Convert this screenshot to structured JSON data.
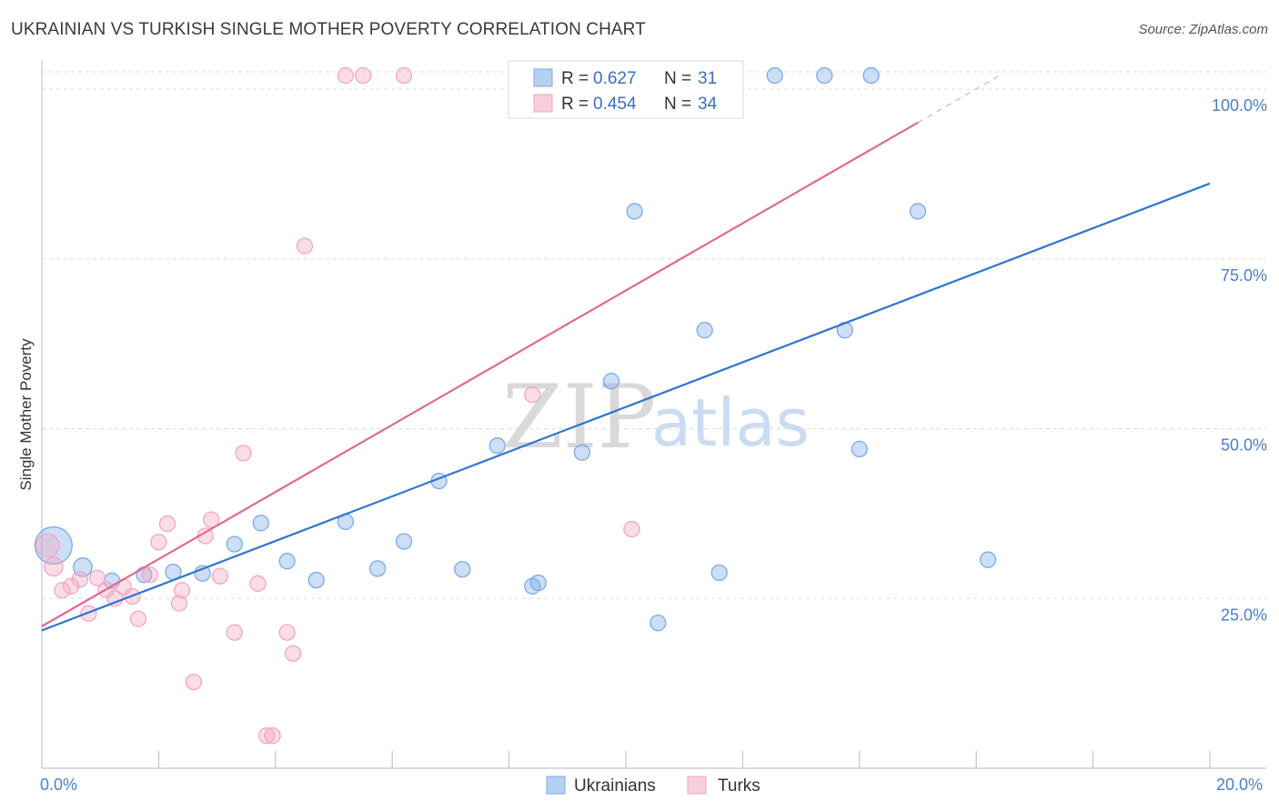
{
  "title": "UKRAINIAN VS TURKISH SINGLE MOTHER POVERTY CORRELATION CHART",
  "source": "Source: ZipAtlas.com",
  "watermark": {
    "zip": "ZIP",
    "atlas": "atlas"
  },
  "chart_data": {
    "type": "scatter",
    "ylabel": "Single Mother Poverty",
    "xlim": [
      0,
      20
    ],
    "ylim": [
      0,
      100
    ],
    "x_ticks": [
      {
        "value": 0,
        "label": "0.0%"
      },
      {
        "value": 20,
        "label": "20.0%"
      }
    ],
    "y_ticks": [
      {
        "value": 25,
        "label": "25.0%"
      },
      {
        "value": 50,
        "label": "50.0%"
      },
      {
        "value": 75,
        "label": "75.0%"
      },
      {
        "value": 100,
        "label": "100.0%"
      }
    ],
    "grid": true,
    "legend_placement": "top-center",
    "series": [
      {
        "name": "Ukrainians",
        "color": "#7aaae8",
        "line_color": "#2f74d0",
        "r_label": "R =",
        "r_value": "0.627",
        "n_label": "N =",
        "n_value": "31",
        "trend": {
          "x0": 0,
          "y0": 20.3,
          "x1": 20,
          "y1": 86.1,
          "dash_from": null
        },
        "points": [
          [
            0.2,
            32.8,
            2.4
          ],
          [
            0.7,
            29.6,
            1.2
          ],
          [
            1.2,
            27.6,
            1.0
          ],
          [
            1.75,
            28.5,
            1.0
          ],
          [
            2.25,
            28.9,
            1.0
          ],
          [
            2.75,
            28.7,
            1.0
          ],
          [
            3.3,
            33.0,
            1.0
          ],
          [
            3.75,
            36.1,
            1.0
          ],
          [
            4.2,
            30.5,
            1.0
          ],
          [
            4.7,
            27.7,
            1.0
          ],
          [
            5.2,
            36.3,
            1.0
          ],
          [
            5.75,
            29.4,
            1.0
          ],
          [
            6.2,
            33.4,
            1.0
          ],
          [
            6.8,
            42.3,
            1.0
          ],
          [
            7.2,
            29.3,
            1.0
          ],
          [
            7.8,
            47.5,
            1.0
          ],
          [
            8.4,
            26.8,
            1.0
          ],
          [
            8.5,
            27.3,
            1.0
          ],
          [
            9.25,
            46.5,
            1.0
          ],
          [
            9.75,
            57.0,
            1.0
          ],
          [
            10.15,
            82.0,
            1.0
          ],
          [
            10.55,
            21.4,
            1.0
          ],
          [
            11.35,
            64.5,
            1.0
          ],
          [
            11.6,
            28.8,
            1.0
          ],
          [
            12.55,
            102.0,
            1.0
          ],
          [
            13.4,
            102.0,
            1.0
          ],
          [
            13.75,
            64.5,
            1.0
          ],
          [
            14.0,
            47.0,
            1.0
          ],
          [
            14.2,
            102.0,
            1.0
          ],
          [
            15.0,
            82.0,
            1.0
          ],
          [
            16.2,
            30.7,
            1.0
          ]
        ]
      },
      {
        "name": "Turks",
        "color": "#f4a6bf",
        "line_color": "#e06a91",
        "r_label": "R =",
        "r_value": "0.454",
        "n_label": "N =",
        "n_value": "34",
        "trend": {
          "x0": 0,
          "y0": 20.9,
          "x1": 16.4,
          "y1": 102.0,
          "dash_from": 15.0
        },
        "points": [
          [
            0.1,
            32.8,
            1.5
          ],
          [
            0.2,
            29.7,
            1.2
          ],
          [
            0.35,
            26.2,
            1.0
          ],
          [
            0.5,
            26.8,
            1.0
          ],
          [
            0.65,
            27.8,
            1.0
          ],
          [
            0.8,
            22.8,
            1.0
          ],
          [
            0.95,
            28.0,
            1.0
          ],
          [
            1.1,
            26.3,
            1.0
          ],
          [
            1.25,
            25.0,
            1.0
          ],
          [
            1.4,
            26.7,
            1.0
          ],
          [
            1.55,
            25.3,
            1.0
          ],
          [
            1.65,
            22.0,
            1.0
          ],
          [
            1.85,
            28.5,
            1.0
          ],
          [
            2.0,
            33.3,
            1.0
          ],
          [
            2.15,
            36.0,
            1.0
          ],
          [
            2.35,
            24.3,
            1.0
          ],
          [
            2.4,
            26.2,
            1.0
          ],
          [
            2.6,
            12.7,
            1.0
          ],
          [
            2.8,
            34.2,
            1.0
          ],
          [
            2.9,
            36.6,
            1.0
          ],
          [
            3.05,
            28.3,
            1.0
          ],
          [
            3.3,
            20.0,
            1.0
          ],
          [
            3.45,
            46.4,
            1.0
          ],
          [
            3.7,
            27.2,
            1.0
          ],
          [
            3.85,
            4.8,
            1.0
          ],
          [
            3.95,
            4.8,
            1.0
          ],
          [
            4.2,
            20.0,
            1.0
          ],
          [
            4.3,
            16.9,
            1.0
          ],
          [
            4.5,
            76.9,
            1.0
          ],
          [
            5.2,
            102.0,
            1.0
          ],
          [
            5.5,
            102.0,
            1.0
          ],
          [
            6.2,
            102.0,
            1.0
          ],
          [
            8.4,
            55.0,
            1.0
          ],
          [
            10.1,
            35.2,
            1.0
          ]
        ]
      }
    ]
  }
}
